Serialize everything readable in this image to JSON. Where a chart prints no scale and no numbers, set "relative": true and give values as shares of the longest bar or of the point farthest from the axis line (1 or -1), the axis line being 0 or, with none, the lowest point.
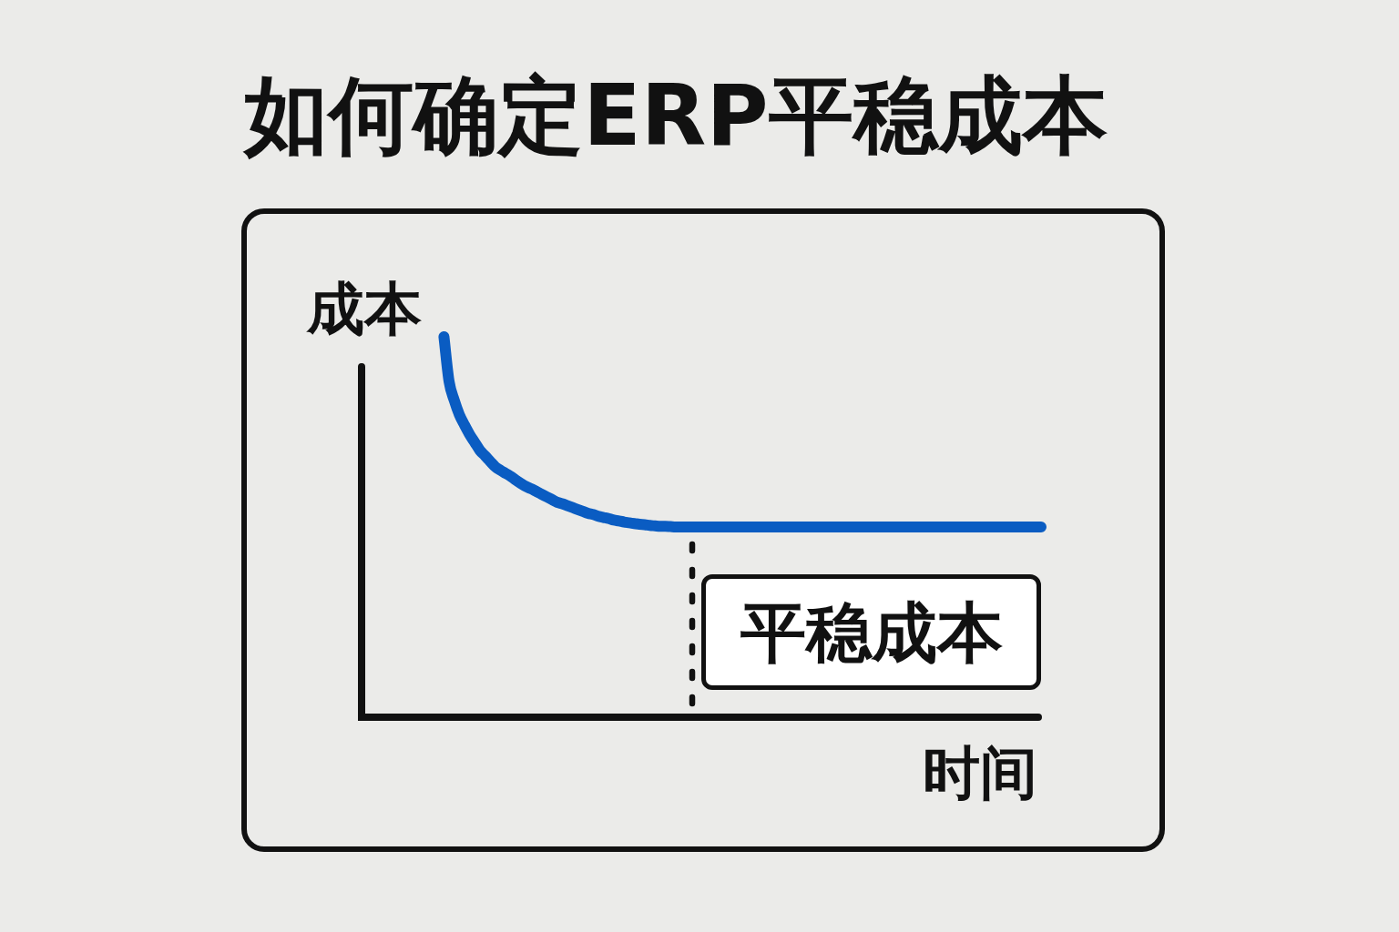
{
  "chart_data": {
    "type": "line",
    "title": "如何确定ERP平稳成本",
    "xlabel": "时间",
    "ylabel": "成本",
    "relative": true,
    "categories": [
      null,
      null,
      null,
      null,
      null,
      null,
      null,
      null,
      null,
      null,
      null,
      null,
      null,
      null,
      null,
      null,
      null,
      null,
      null,
      null,
      null,
      null,
      null,
      null,
      null,
      null,
      null,
      null,
      null,
      null,
      null,
      null,
      null,
      null,
      null,
      null,
      null,
      null,
      null,
      null,
      null,
      null,
      null,
      null,
      null,
      null,
      null,
      null,
      null,
      null,
      null,
      null,
      null,
      null,
      null,
      null,
      null,
      null,
      null,
      null,
      null,
      null,
      null,
      null,
      null,
      null,
      null,
      null,
      null,
      null,
      null,
      null,
      null,
      null,
      null,
      null,
      null,
      null,
      null,
      null,
      null,
      null,
      null,
      null,
      null,
      null,
      null,
      null,
      null,
      null,
      null,
      null,
      null,
      null,
      null,
      null,
      null,
      null,
      null,
      null,
      null,
      null,
      null,
      null,
      null,
      null,
      null,
      null,
      null,
      null,
      null,
      null,
      null,
      null,
      null,
      null,
      null,
      null,
      null,
      null,
      null,
      null,
      null,
      null,
      null,
      null,
      null,
      null,
      null,
      null,
      null,
      null,
      null
    ],
    "color": "#0a5cc2",
    "values": [
      null,
      null,
      null,
      null,
      null,
      null,
      null,
      null,
      null,
      null,
      null,
      null,
      null,
      null,
      null,
      null,
      1,
      0.882,
      0.833,
      0.795,
      0.768,
      0.743,
      0.722,
      0.701,
      0.687,
      0.672,
      0.658,
      0.649,
      0.641,
      0.633,
      0.623,
      0.614,
      0.606,
      0.6,
      0.593,
      0.586,
      0.579,
      0.572,
      0.565,
      0.561,
      0.556,
      0.551,
      0.546,
      0.541,
      0.536,
      0.533,
      0.528,
      0.525,
      0.522,
      0.518,
      0.516,
      0.513,
      0.511,
      0.509,
      0.507,
      0.506,
      0.504,
      0.503,
      0.502,
      0.502,
      0.501,
      0.5,
      0.5,
      0.5,
      0.5,
      0.5,
      0.5,
      0.5,
      0.5,
      0.5,
      0.5,
      0.5,
      0.5,
      0.5,
      0.5,
      0.5,
      0.5,
      0.5,
      0.5,
      0.5,
      0.5,
      0.5,
      0.5,
      0.5,
      0.5,
      0.5,
      0.5,
      0.5,
      0.5,
      0.5,
      0.5,
      0.5,
      0.5,
      0.5,
      0.5,
      0.5,
      0.5,
      0.5,
      0.5,
      0.5,
      0.5,
      0.5,
      0.5,
      0.5,
      0.5,
      0.5,
      0.5,
      0.5,
      0.5,
      0.5,
      0.5,
      0.5,
      0.5,
      0.5,
      0.5,
      0.5,
      0.5,
      0.5,
      0.5,
      0.5,
      0.5,
      0.5,
      0.5,
      0.5,
      0.5,
      0.5,
      0.5,
      0.5,
      0.5,
      0.5,
      0.5,
      0.5,
      0.5
    ],
    "annotations": [
      "平稳成本"
    ],
    "marker": "none",
    "line_style": "solid",
    "legend": false
  }
}
